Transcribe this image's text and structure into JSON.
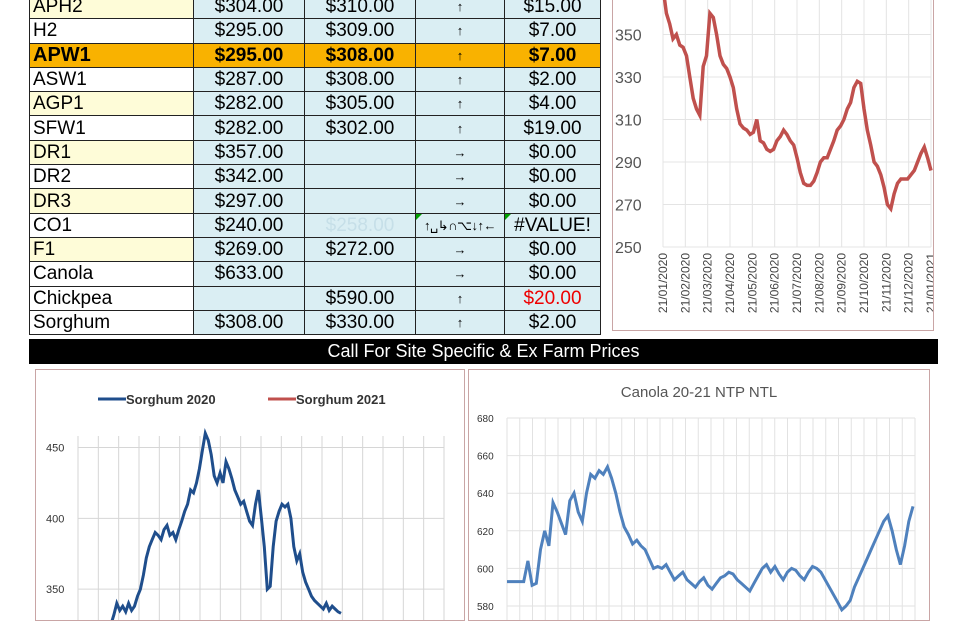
{
  "price_table": {
    "rows": [
      {
        "name": "APH2",
        "p1": "$304.00",
        "p2": "$310.00",
        "arrow": "↑",
        "change": "$15.00",
        "style": "y"
      },
      {
        "name": "H2",
        "p1": "$295.00",
        "p2": "$309.00",
        "arrow": "↑",
        "change": "$7.00",
        "style": "w"
      },
      {
        "name": "APW1",
        "p1": "$295.00",
        "p2": "$308.00",
        "arrow": "↑",
        "change": "$7.00",
        "style": "hl"
      },
      {
        "name": "ASW1",
        "p1": "$287.00",
        "p2": "$308.00",
        "arrow": "↑",
        "change": "$2.00",
        "style": "w"
      },
      {
        "name": "AGP1",
        "p1": "$282.00",
        "p2": "$305.00",
        "arrow": "↑",
        "change": "$4.00",
        "style": "y"
      },
      {
        "name": "SFW1",
        "p1": "$282.00",
        "p2": "$302.00",
        "arrow": "↑",
        "change": "$19.00",
        "style": "w"
      },
      {
        "name": "DR1",
        "p1": "$357.00",
        "p2": "",
        "arrow": "→",
        "change": "$0.00",
        "style": "y"
      },
      {
        "name": "DR2",
        "p1": "$342.00",
        "p2": "",
        "arrow": "→",
        "change": "$0.00",
        "style": "w"
      },
      {
        "name": "DR3",
        "p1": "$297.00",
        "p2": "",
        "arrow": "→",
        "change": "$0.00",
        "style": "y"
      },
      {
        "name": "CO1",
        "p1": "$240.00",
        "p2": "$258.00",
        "arrow": "↑␣↳∩⌥↓↑←",
        "change": "#VALUE!",
        "style": "w",
        "p2faint": true,
        "err": true
      },
      {
        "name": "F1",
        "p1": "$269.00",
        "p2": "$272.00",
        "arrow": "→",
        "change": "$0.00",
        "style": "y"
      },
      {
        "name": "Canola",
        "p1": "$633.00",
        "p2": "",
        "arrow": "→",
        "change": "$0.00",
        "style": "w"
      },
      {
        "name": "Chickpea",
        "p1": "",
        "p2": "$590.00",
        "arrow": "↑",
        "change": "$20.00",
        "style": "w",
        "neg": true
      },
      {
        "name": "Sorghum",
        "p1": "$308.00",
        "p2": "$330.00",
        "arrow": "↑",
        "change": "$2.00",
        "style": "w"
      }
    ]
  },
  "banner": "Call For Site Specific & Ex Farm Prices",
  "chart_data": [
    {
      "type": "line",
      "title": "",
      "ylim": [
        250,
        370
      ],
      "yticks": [
        "250",
        "270",
        "290",
        "310",
        "330",
        "350"
      ],
      "x_tick_labels": [
        "21/01/2020",
        "21/02/2020",
        "21/03/2020",
        "21/04/2020",
        "21/05/2020",
        "21/06/2020",
        "21/07/2020",
        "21/08/2020",
        "21/09/2020",
        "21/10/2020",
        "21/11/2020",
        "21/12/2020",
        "21/01/2021"
      ],
      "color": "#c0504d",
      "series": [
        {
          "values": [
            372,
            360,
            355,
            348,
            350,
            345,
            344,
            340,
            330,
            320,
            315,
            312,
            335,
            340,
            360,
            358,
            350,
            340,
            336,
            334,
            330,
            325,
            315,
            308,
            306,
            305,
            303,
            304,
            310,
            300,
            299,
            296,
            295,
            296,
            300,
            302,
            305,
            303,
            300,
            298,
            292,
            285,
            280,
            279,
            279,
            281,
            285,
            290,
            292,
            292,
            296,
            300,
            305,
            307,
            310,
            315,
            318,
            325,
            328,
            327,
            315,
            305,
            298,
            290,
            288,
            284,
            278,
            270,
            268,
            275,
            280,
            282,
            282,
            282,
            284,
            286,
            290,
            294,
            297,
            292,
            286
          ]
        }
      ]
    },
    {
      "type": "line",
      "title": "",
      "legend": [
        {
          "name": "Sorghum 2020",
          "color": "#1f4e8c"
        },
        {
          "name": "Sorghum 2021",
          "color": "#c0504d"
        }
      ],
      "ylim": [
        300,
        480
      ],
      "yticks": [
        "350",
        "400",
        "450"
      ],
      "series": [
        {
          "name": "Sorghum 2020",
          "color": "#1f4e8c",
          "values": [
            null,
            null,
            null,
            null,
            null,
            null,
            null,
            null,
            null,
            null,
            null,
            null,
            null,
            null,
            null,
            null,
            null,
            null,
            null,
            null,
            null,
            null,
            null,
            null,
            null,
            null,
            null,
            null,
            null,
            null,
            null,
            null,
            null,
            null,
            null,
            null,
            null,
            null,
            null,
            null,
            null,
            null,
            null,
            null,
            null,
            null,
            null,
            null,
            null,
            null,
            null,
            null,
            null,
            null,
            null,
            null,
            null,
            null,
            null,
            null,
            null,
            null,
            null,
            null,
            null,
            null,
            null,
            null,
            null,
            null,
            null,
            null,
            null,
            null,
            null,
            null,
            null,
            null,
            null,
            null
          ]
        },
        {
          "name": "Sorghum 2020",
          "color": "#1f4e8c",
          "values": [
            320,
            325,
            332,
            340,
            335,
            338,
            334,
            340,
            335,
            338,
            345,
            350,
            360,
            372,
            380,
            385,
            390,
            388,
            385,
            392,
            395,
            388,
            390,
            385,
            392,
            398,
            405,
            410,
            420,
            418,
            425,
            435,
            448,
            460,
            455,
            445,
            430,
            425,
            432,
            425,
            440,
            435,
            428,
            420,
            415,
            410,
            412,
            405,
            398,
            395,
            410,
            420,
            400,
            380,
            350,
            352,
            380,
            398,
            405,
            410,
            408,
            410,
            400,
            380,
            370,
            375,
            362,
            355,
            350,
            345,
            342,
            340,
            338,
            336,
            340,
            335,
            338,
            336,
            334,
            333
          ]
        }
      ]
    },
    {
      "type": "line",
      "title": "Canola 20-21 NTP NTL",
      "ylim": [
        580,
        680
      ],
      "yticks": [
        "580",
        "600",
        "620",
        "640",
        "660",
        "680"
      ],
      "color": "#4f81bd",
      "series": [
        {
          "values": [
            593,
            593,
            593,
            593,
            593,
            604,
            591,
            592,
            610,
            620,
            612,
            635,
            630,
            624,
            618,
            636,
            640,
            630,
            625,
            640,
            650,
            648,
            652,
            650,
            654,
            648,
            640,
            630,
            622,
            618,
            613,
            615,
            612,
            610,
            605,
            600,
            601,
            600,
            602,
            598,
            594,
            596,
            598,
            594,
            592,
            590,
            593,
            595,
            591,
            589,
            592,
            595,
            596,
            598,
            597,
            594,
            592,
            590,
            588,
            592,
            596,
            600,
            602,
            598,
            601,
            597,
            594,
            598,
            600,
            599,
            596,
            594,
            598,
            601,
            600,
            598,
            594,
            590,
            586,
            582,
            578,
            580,
            583,
            590,
            595,
            600,
            605,
            610,
            615,
            620,
            625,
            628,
            620,
            610,
            602,
            612,
            625,
            633
          ]
        }
      ]
    }
  ]
}
